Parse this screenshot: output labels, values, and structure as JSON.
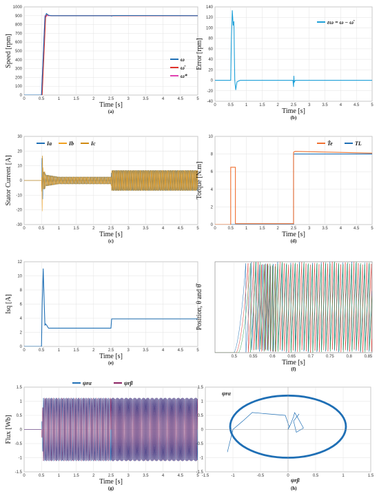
{
  "chart_data": [
    {
      "id": "a",
      "type": "line",
      "caption": "(a)",
      "xlabel": "Time [s]",
      "ylabel": "Speed [rpm]",
      "xlim": [
        0,
        5
      ],
      "ylim": [
        0,
        1000
      ],
      "xticks": [
        "0",
        "0.5",
        "1",
        "1.5",
        "2",
        "2.5",
        "3",
        "3.5",
        "4",
        "4.5",
        "5"
      ],
      "yticks": [
        "0",
        "100",
        "200",
        "300",
        "400",
        "500",
        "600",
        "700",
        "800",
        "900",
        "1000"
      ],
      "grid": true,
      "legend": "right",
      "series": [
        {
          "name": "ω",
          "color": "#1f6fb5",
          "x": [
            0,
            0.5,
            0.6,
            0.64,
            0.7,
            0.8,
            1,
            2.5,
            2.52,
            2.56,
            5
          ],
          "y": [
            0,
            0,
            880,
            925,
            905,
            900,
            900,
            900,
            895,
            902,
            900
          ]
        },
        {
          "name": "ω̂",
          "color": "#e0322b",
          "x": [
            0,
            0.52,
            0.62,
            0.66,
            0.72,
            0.8,
            1,
            2.5,
            5
          ],
          "y": [
            0,
            0,
            880,
            915,
            902,
            900,
            900,
            900,
            900
          ]
        },
        {
          "name": "ω*",
          "color": "#e040b0",
          "x": [
            0,
            0.5,
            0.6,
            5
          ],
          "y": [
            0,
            0,
            900,
            900
          ]
        }
      ]
    },
    {
      "id": "b",
      "type": "line",
      "caption": "(b)",
      "xlabel": "Time [s]",
      "ylabel": "Error [rpm]",
      "xlim": [
        0,
        5
      ],
      "ylim": [
        -40,
        140
      ],
      "xticks": [
        "0",
        "0.5",
        "1",
        "1.5",
        "2",
        "2.5",
        "3",
        "3.5",
        "4",
        "4.5",
        "5"
      ],
      "yticks": [
        "-40",
        "-20",
        "0",
        "20",
        "40",
        "60",
        "80",
        "100",
        "120",
        "140"
      ],
      "grid": true,
      "legend": "top-right",
      "series": [
        {
          "name": "εω = ω − ω̂",
          "color": "#1ea0d8",
          "x": [
            0,
            0.5,
            0.52,
            0.55,
            0.58,
            0.6,
            0.63,
            0.66,
            0.7,
            0.8,
            2.48,
            2.5,
            2.51,
            2.52,
            2.55,
            5
          ],
          "y": [
            0,
            0,
            70,
            133,
            105,
            112,
            0,
            -18,
            -3,
            0,
            0,
            -12,
            8,
            -4,
            0,
            0
          ]
        }
      ]
    },
    {
      "id": "c",
      "type": "line",
      "caption": "(c)",
      "xlabel": "Time [s]",
      "ylabel": "Stator Current [A]",
      "xlim": [
        0,
        5
      ],
      "ylim": [
        -30,
        30
      ],
      "xticks": [
        "0",
        "0.5",
        "1",
        "1.5",
        "2",
        "2.5",
        "3",
        "3.5",
        "4",
        "4.5",
        "5"
      ],
      "yticks": [
        "-30",
        "-20",
        "-10",
        "0",
        "10",
        "20",
        "30"
      ],
      "grid": true,
      "legend": "top-left",
      "series": [
        {
          "name": "Ia",
          "color": "#1f6fb5"
        },
        {
          "name": "Ib",
          "color": "#f0a020"
        },
        {
          "name": "Ic",
          "color": "#d08a10"
        }
      ],
      "envelope": {
        "x": [
          0.5,
          0.52,
          0.55,
          0.6,
          0.62,
          1,
          2.5,
          2.52,
          5
        ],
        "amplitude": [
          0,
          21,
          6,
          6,
          4,
          2.5,
          2.5,
          7,
          7
        ]
      }
    },
    {
      "id": "d",
      "type": "line",
      "caption": "(d)",
      "xlabel": "Time [s]",
      "ylabel": "Torque [N.m]",
      "xlim": [
        0,
        5
      ],
      "ylim": [
        0,
        10
      ],
      "xticks": [
        "0",
        "0.5",
        "1",
        "1.5",
        "2",
        "2.5",
        "3",
        "3.5",
        "4",
        "4.5",
        "5"
      ],
      "yticks": [
        "0",
        "2",
        "4",
        "6",
        "8",
        "10"
      ],
      "grid": true,
      "legend": "top-right",
      "series": [
        {
          "name": "T̂e",
          "color": "#f07030",
          "x": [
            0,
            0.5,
            0.5,
            0.65,
            0.65,
            2.5,
            2.5,
            2.55,
            5
          ],
          "y": [
            0,
            0,
            6.5,
            6.5,
            0.1,
            0.1,
            8.2,
            8.3,
            8.1
          ]
        },
        {
          "name": "TL",
          "color": "#1f6fb5",
          "x": [
            0,
            2.5,
            2.5,
            5
          ],
          "y": [
            0,
            0,
            8,
            8
          ]
        }
      ]
    },
    {
      "id": "e",
      "type": "line",
      "caption": "(e)",
      "xlabel": "Time [s]",
      "ylabel": "Isq [A]",
      "xlim": [
        0,
        5
      ],
      "ylim": [
        0,
        12
      ],
      "xticks": [
        "0",
        "0.5",
        "1",
        "1.5",
        "2",
        "2.5",
        "3",
        "3.5",
        "4",
        "4.5",
        "5"
      ],
      "yticks": [
        "0",
        "2",
        "4",
        "6",
        "8",
        "10",
        "12"
      ],
      "grid": true,
      "series": [
        {
          "name": "",
          "color": "#1f6fb5",
          "x": [
            0,
            0.5,
            0.52,
            0.55,
            0.58,
            0.6,
            0.62,
            0.65,
            0.7,
            0.8,
            2.5,
            2.52,
            5
          ],
          "y": [
            0,
            0,
            6,
            11,
            6,
            3,
            3.2,
            3,
            2.6,
            2.6,
            2.6,
            3.9,
            3.9
          ]
        }
      ]
    },
    {
      "id": "f",
      "type": "line",
      "caption": "(f)",
      "xlabel": "Time [s]",
      "ylabel": "Position,  θ  and  θ̂",
      "xlim": [
        0.45,
        0.86
      ],
      "ylim": [
        0,
        1
      ],
      "xticks": [
        "0.5",
        "0.55",
        "0.6",
        "0.65",
        "0.7",
        "0.75",
        "0.8",
        "0.85"
      ],
      "grid": true,
      "series": [
        {
          "name": "",
          "color": "#1f6fb5"
        },
        {
          "name": "",
          "color": "#e0322b"
        },
        {
          "name": "",
          "color": "#2ea050"
        }
      ]
    },
    {
      "id": "g",
      "type": "line",
      "caption": "(g)",
      "xlabel": "Time [s]",
      "ylabel": "Flux [Wb]",
      "xlim": [
        0,
        5
      ],
      "ylim": [
        -1.5,
        1.5
      ],
      "xticks": [
        "0",
        "0.5",
        "1",
        "1.5",
        "2",
        "2.5",
        "3",
        "3.5",
        "4",
        "4.5",
        "5"
      ],
      "yticks": [
        "-1.5",
        "-1",
        "-0.5",
        "0",
        "0.5",
        "1",
        "1.5"
      ],
      "grid": true,
      "legend": "top",
      "series": [
        {
          "name": "ψrα",
          "color": "#1f6fb5"
        },
        {
          "name": "ψrβ",
          "color": "#8a2060"
        }
      ],
      "envelope": {
        "x": [
          0.5,
          0.55,
          5
        ],
        "amplitude": [
          0,
          1.12,
          1.12
        ]
      }
    },
    {
      "id": "h",
      "type": "scatter",
      "caption": "(h)",
      "xlabel": "ψrβ",
      "ylabel": "ψrα",
      "xlim": [
        -1.5,
        1.5
      ],
      "ylim": [
        -1.5,
        1.5
      ],
      "xticks": [
        "-1.5",
        "-1",
        "-0.5",
        "0",
        "0.5",
        "1",
        "1.5"
      ],
      "yticks": [
        "-1.5",
        "-1",
        "-0.5",
        "0",
        "0.5",
        "1",
        "1.5"
      ],
      "grid": true,
      "series": [
        {
          "name": "",
          "color": "#1f6fb5",
          "x": [
            0,
            0.02,
            -0.05,
            -0.35,
            -0.65,
            -0.82,
            -1.0,
            -1.05,
            -1.1
          ],
          "y": [
            0,
            0.1,
            0.5,
            0.55,
            0.6,
            0.3,
            0.0,
            -0.4,
            -0.8
          ]
        },
        {
          "name": "",
          "color": "#1f6fb5",
          "x": [
            0,
            0.05,
            0.1,
            0.12,
            0.18,
            0.28,
            0.15,
            0.1,
            0.2
          ],
          "y": [
            0,
            0.2,
            0.45,
            0.6,
            0.4,
            0.05,
            -0.1,
            0.3,
            0.55
          ]
        }
      ]
    }
  ]
}
